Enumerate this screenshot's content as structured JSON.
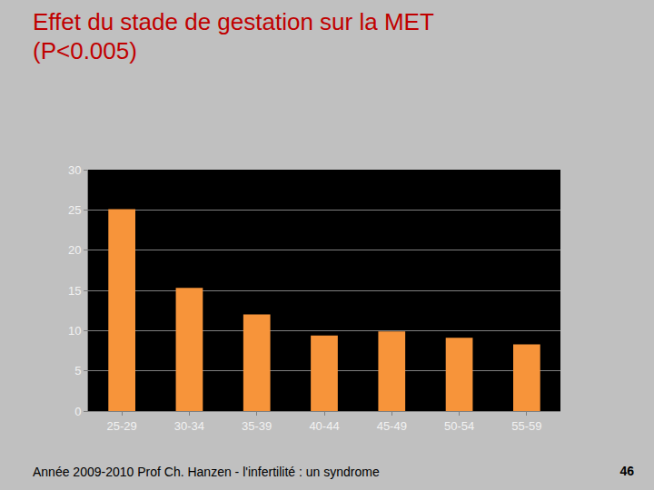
{
  "chart_data": {
    "type": "bar",
    "title": "Effet du stade de gestation sur la MET (P<0.005)",
    "categories": [
      "25-29",
      "30-34",
      "35-39",
      "40-44",
      "45-49",
      "50-54",
      "55-59"
    ],
    "values": [
      25.1,
      15.3,
      12.0,
      9.4,
      9.9,
      9.1,
      8.3
    ],
    "color": "#f7943a",
    "ylim": [
      0,
      30
    ],
    "yticks": [
      0,
      5,
      10,
      15,
      20,
      25,
      30
    ],
    "grid": true
  },
  "footer": {
    "text": "Année 2009-2010 Prof Ch. Hanzen - l'infertilité : un syndrome",
    "page": "46"
  }
}
